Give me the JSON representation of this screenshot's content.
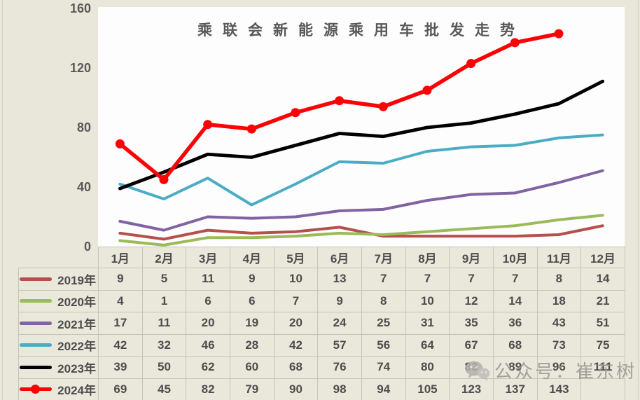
{
  "chart_data": {
    "type": "line",
    "title": "乘联会新能源乘用车批发走势",
    "categories": [
      "1月",
      "2月",
      "3月",
      "4月",
      "5月",
      "6月",
      "7月",
      "8月",
      "9月",
      "10月",
      "11月",
      "12月"
    ],
    "yticks": [
      160,
      120,
      80,
      40,
      0
    ],
    "ylim": [
      0,
      160
    ],
    "grid": false,
    "legend_position": "table-left",
    "plot_bg": "#fdfdfd",
    "series": [
      {
        "name": "2019年",
        "color": "#b5504d",
        "marker": false,
        "values": [
          9,
          5,
          11,
          9,
          10,
          13,
          7,
          7,
          7,
          7,
          8,
          14
        ]
      },
      {
        "name": "2020年",
        "color": "#9bbb59",
        "marker": false,
        "values": [
          4,
          1,
          6,
          6,
          7,
          9,
          8,
          10,
          12,
          14,
          18,
          21
        ]
      },
      {
        "name": "2021年",
        "color": "#8064a2",
        "marker": false,
        "values": [
          17,
          11,
          20,
          19,
          20,
          24,
          25,
          31,
          35,
          36,
          43,
          51
        ]
      },
      {
        "name": "2022年",
        "color": "#4bacc6",
        "marker": false,
        "values": [
          42,
          32,
          46,
          28,
          42,
          57,
          56,
          64,
          67,
          68,
          73,
          75
        ]
      },
      {
        "name": "2023年",
        "color": "#000000",
        "marker": false,
        "values": [
          39,
          50,
          62,
          60,
          68,
          76,
          74,
          80,
          83,
          89,
          96,
          111
        ]
      },
      {
        "name": "2024年",
        "color": "#fb0305",
        "marker": true,
        "values": [
          69,
          45,
          82,
          79,
          90,
          98,
          94,
          105,
          123,
          137,
          143
        ]
      }
    ]
  },
  "watermark": {
    "text": "公众号：崔东树"
  }
}
